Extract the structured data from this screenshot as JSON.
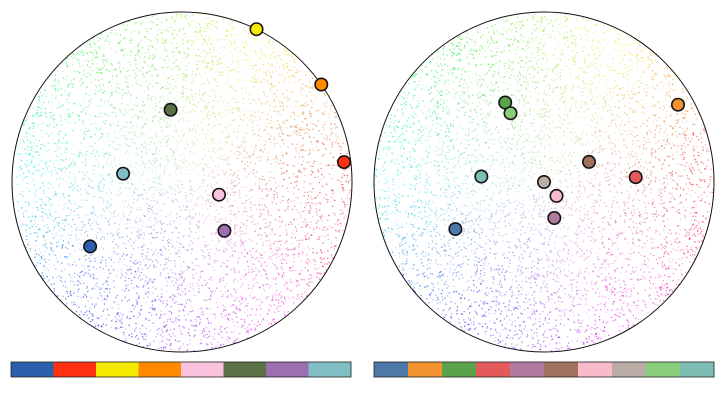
{
  "panels": [
    {
      "id": "left",
      "markers": [
        {
          "color": "#f5ea00",
          "hue_angle_deg": 64,
          "radius_fraction": 1.0
        },
        {
          "color": "#ff8a00",
          "hue_angle_deg": 35,
          "radius_fraction": 1.0
        },
        {
          "color": "#ff3010",
          "hue_angle_deg": 7,
          "radius_fraction": 0.96
        },
        {
          "color": "#5a7146",
          "hue_angle_deg": 99,
          "radius_fraction": 0.43
        },
        {
          "color": "#7fbfc4",
          "hue_angle_deg": 172,
          "radius_fraction": 0.35
        },
        {
          "color": "#fbc2dd",
          "hue_angle_deg": 341,
          "radius_fraction": 0.23
        },
        {
          "color": "#9b6fb0",
          "hue_angle_deg": 311,
          "radius_fraction": 0.38
        },
        {
          "color": "#2b5fae",
          "hue_angle_deg": 215,
          "radius_fraction": 0.66
        }
      ],
      "palette": [
        "#2b5fae",
        "#ff3010",
        "#f5ea00",
        "#ff8a00",
        "#fbc2dd",
        "#5a7146",
        "#9b6fb0",
        "#7fbfc4"
      ]
    },
    {
      "id": "right",
      "markers": [
        {
          "color": "#f2932f",
          "hue_angle_deg": 30,
          "radius_fraction": 0.91
        },
        {
          "color": "#a0725e",
          "hue_angle_deg": 24,
          "radius_fraction": 0.29
        },
        {
          "color": "#e45a5a",
          "hue_angle_deg": 3,
          "radius_fraction": 0.54
        },
        {
          "color": "#5aa34a",
          "hue_angle_deg": 116,
          "radius_fraction": 0.52
        },
        {
          "color": "#89cd7a",
          "hue_angle_deg": 116,
          "radius_fraction": 0.45
        },
        {
          "color": "#7dbdb3",
          "hue_angle_deg": 175,
          "radius_fraction": 0.37
        },
        {
          "color": "#b9ada6",
          "hue_angle_deg": 0,
          "radius_fraction": 0.0
        },
        {
          "color": "#f9bbcc",
          "hue_angle_deg": 312,
          "radius_fraction": 0.11
        },
        {
          "color": "#b07aa1",
          "hue_angle_deg": 286,
          "radius_fraction": 0.22
        },
        {
          "color": "#4c79a7",
          "hue_angle_deg": 208,
          "radius_fraction": 0.59
        }
      ],
      "palette": [
        "#4c79a7",
        "#f2932f",
        "#5aa34a",
        "#e45a5a",
        "#b07aa1",
        "#a0725e",
        "#f9bbcc",
        "#b9ada6",
        "#89cd7a",
        "#7dbdb3"
      ]
    }
  ]
}
